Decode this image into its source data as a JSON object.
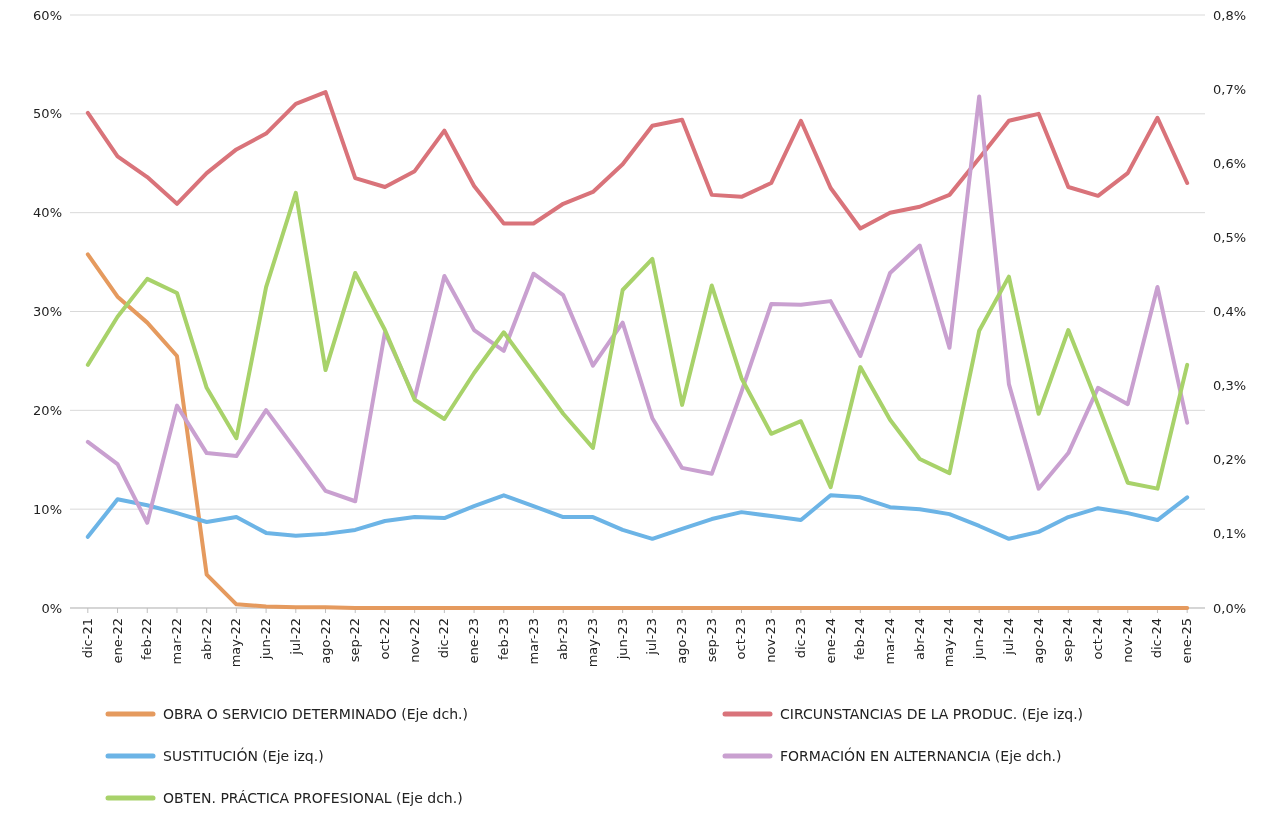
{
  "chart_data": {
    "type": "line",
    "categories": [
      "dic-21",
      "ene-22",
      "feb-22",
      "mar-22",
      "abr-22",
      "may-22",
      "jun-22",
      "jul-22",
      "ago-22",
      "sep-22",
      "oct-22",
      "nov-22",
      "dic-22",
      "ene-23",
      "feb-23",
      "mar-23",
      "abr-23",
      "may-23",
      "jun-23",
      "jul-23",
      "ago-23",
      "sep-23",
      "oct-23",
      "nov-23",
      "dic-23",
      "ene-24",
      "feb-24",
      "mar-24",
      "abr-24",
      "may-24",
      "jun-24",
      "jul-24",
      "ago-24",
      "sep-24",
      "oct-24",
      "nov-24",
      "dic-24",
      "ene-25"
    ],
    "series": [
      {
        "name": "OBRA O SERVICIO DETERMINADO (Eje dch.)",
        "color": "#e59a5e",
        "axis": "y2",
        "values": [
          0.477,
          0.42,
          0.385,
          0.34,
          0.045,
          0.005,
          0.002,
          0.001,
          0.001,
          0,
          0,
          0,
          0,
          0,
          0,
          0,
          0,
          0,
          0,
          0,
          0,
          0,
          0,
          0,
          0,
          0,
          0,
          0,
          0,
          0,
          0,
          0,
          0,
          0,
          0,
          0,
          0,
          0
        ]
      },
      {
        "name": "CIRCUNSTANCIAS DE LA PRODUC. (Eje izq.)",
        "color": "#d9737a",
        "values": [
          50.1,
          45.7,
          43.6,
          40.9,
          44.0,
          46.4,
          48.0,
          51.0,
          52.2,
          43.5,
          42.6,
          44.2,
          48.3,
          42.7,
          38.9,
          38.9,
          40.9,
          42.1,
          44.9,
          48.8,
          49.4,
          41.8,
          41.6,
          43.0,
          49.3,
          42.5,
          38.4,
          40.0,
          40.6,
          41.8,
          45.5,
          49.3,
          50.0,
          42.6,
          41.7,
          44.0,
          49.6,
          43.0
        ]
      },
      {
        "name": "SUSTITUCIÓN (Eje izq.)",
        "color": "#6cb4e6",
        "values": [
          7.2,
          11.0,
          10.4,
          9.6,
          8.7,
          9.2,
          7.6,
          7.3,
          7.5,
          7.9,
          8.8,
          9.2,
          9.1,
          10.3,
          11.4,
          10.3,
          9.2,
          9.2,
          7.9,
          7.0,
          8.0,
          9.0,
          9.7,
          9.3,
          8.9,
          11.4,
          11.2,
          10.2,
          10.0,
          9.5,
          8.3,
          7.0,
          7.7,
          9.2,
          10.1,
          9.6,
          8.9,
          11.2
        ]
      },
      {
        "name": "FORMACIÓN EN ALTERNANCIA (Eje dch.)",
        "color": "#c9a0d0",
        "axis": "y2",
        "values": [
          0.224,
          0.194,
          0.115,
          0.273,
          0.209,
          0.205,
          0.267,
          0.213,
          0.158,
          0.144,
          0.372,
          0.283,
          0.448,
          0.375,
          0.347,
          0.451,
          0.422,
          0.327,
          0.385,
          0.256,
          0.189,
          0.181,
          0.292,
          0.41,
          0.409,
          0.414,
          0.34,
          0.452,
          0.489,
          0.351,
          0.69,
          0.302,
          0.161,
          0.209,
          0.297,
          0.275,
          0.433,
          0.25
        ]
      },
      {
        "name": "OBTEN. PRÁCTICA PROFESIONAL (Eje dch.)",
        "color": "#a8d26a",
        "axis": "y2",
        "values": [
          0.328,
          0.393,
          0.444,
          0.425,
          0.297,
          0.229,
          0.433,
          0.56,
          0.321,
          0.452,
          0.375,
          0.281,
          0.255,
          0.317,
          0.372,
          0.317,
          0.262,
          0.216,
          0.429,
          0.471,
          0.274,
          0.435,
          0.31,
          0.235,
          0.252,
          0.163,
          0.325,
          0.254,
          0.201,
          0.182,
          0.374,
          0.447,
          0.262,
          0.375,
          0.274,
          0.169,
          0.161,
          0.328
        ]
      }
    ],
    "ylim": [
      0,
      60
    ],
    "yticks": [
      {
        "value": 0,
        "label": "0%"
      },
      {
        "value": 10,
        "label": "10%"
      },
      {
        "value": 20,
        "label": "20%"
      },
      {
        "value": 30,
        "label": "30%"
      },
      {
        "value": 40,
        "label": "40%"
      },
      {
        "value": 50,
        "label": "50%"
      },
      {
        "value": 60,
        "label": "60%"
      }
    ],
    "y2lim": [
      0,
      0.8
    ],
    "y2ticks": [
      {
        "value": 0,
        "label": "0,0%"
      },
      {
        "value": 0.1,
        "label": "0,1%"
      },
      {
        "value": 0.2,
        "label": "0,2%"
      },
      {
        "value": 0.3,
        "label": "0,3%"
      },
      {
        "value": 0.4,
        "label": "0,4%"
      },
      {
        "value": 0.5,
        "label": "0,5%"
      },
      {
        "value": 0.6,
        "label": "0,6%"
      },
      {
        "value": 0.7,
        "label": "0,7%"
      },
      {
        "value": 0.8,
        "label": "0,8%"
      }
    ],
    "grid": "y",
    "legend": "bottom",
    "marker": "none",
    "line_style": "solid"
  }
}
